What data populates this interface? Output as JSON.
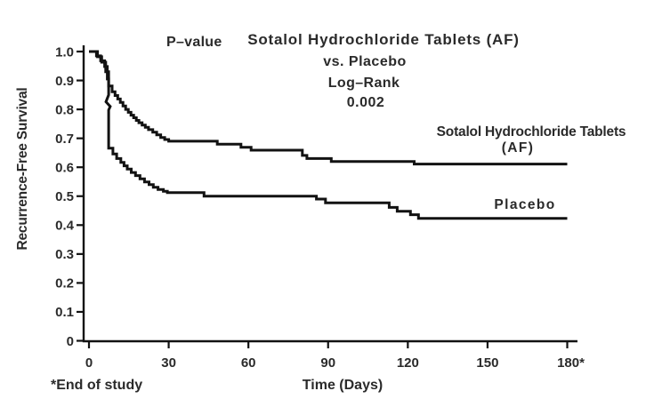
{
  "figure": {
    "background": "#ffffff",
    "text_color": "#2a2a2a",
    "line_color": "#121212"
  },
  "chart_data": {
    "type": "line",
    "subtype": "kaplan_meier_step_curves",
    "title_annotation": "P–value",
    "title_lines": [
      "Sotalol Hydrochloride Tablets (AF)",
      "vs. Placebo",
      "Log–Rank",
      "0.002"
    ],
    "comparison": "Sotalol Hydrochloride Tablets (AF) vs. Placebo",
    "test": "Log–Rank",
    "p_value": "0.002",
    "xlabel": "Time (Days)",
    "ylabel": "Recurrence-Free Survival",
    "footnote": "*End of study",
    "xlim": [
      0,
      180
    ],
    "ylim": [
      0,
      1.0
    ],
    "x_ticks": [
      0,
      30,
      60,
      90,
      120,
      150,
      180
    ],
    "x_tick_labels": [
      "0",
      "30",
      "60",
      "90",
      "120",
      "150",
      "180*"
    ],
    "y_ticks": [
      0,
      0.1,
      0.2,
      0.3,
      0.4,
      0.5,
      0.6,
      0.7,
      0.8,
      0.9,
      1.0
    ],
    "y_tick_labels": [
      "0",
      "0.1",
      "0.2",
      "0.3",
      "0.4",
      "0.5",
      "0.6",
      "0.7",
      "0.8",
      "0.9",
      "1.0"
    ],
    "grid": false,
    "legend_position": "labels-on-chart",
    "series": [
      {
        "name": "Sotalol Hydrochloride Tablets (AF)",
        "label_lines": [
          "Sotalol Hydrochloride Tablets",
          "(AF)"
        ],
        "final_value": 0.61,
        "points": [
          [
            0,
            1.0
          ],
          [
            3.2,
            1.0
          ],
          [
            3.2,
            0.982
          ],
          [
            4.8,
            0.982
          ],
          [
            4.8,
            0.963
          ],
          [
            6.3,
            0.963
          ],
          [
            6.3,
            0.93
          ],
          [
            6.9,
            0.93
          ],
          [
            6.9,
            0.905
          ],
          [
            7.4,
            0.905
          ],
          [
            7.4,
            0.881
          ],
          [
            8.7,
            0.881
          ],
          [
            8.7,
            0.861
          ],
          [
            9.8,
            0.861
          ],
          [
            9.8,
            0.848
          ],
          [
            10.8,
            0.848
          ],
          [
            10.8,
            0.836
          ],
          [
            11.8,
            0.836
          ],
          [
            11.8,
            0.824
          ],
          [
            12.8,
            0.824
          ],
          [
            12.8,
            0.812
          ],
          [
            13.8,
            0.812
          ],
          [
            13.8,
            0.8
          ],
          [
            14.8,
            0.8
          ],
          [
            14.8,
            0.79
          ],
          [
            15.8,
            0.79
          ],
          [
            15.8,
            0.78
          ],
          [
            16.8,
            0.78
          ],
          [
            16.8,
            0.771
          ],
          [
            17.8,
            0.771
          ],
          [
            17.8,
            0.762
          ],
          [
            18.8,
            0.762
          ],
          [
            18.8,
            0.754
          ],
          [
            20.0,
            0.754
          ],
          [
            20.0,
            0.746
          ],
          [
            21.2,
            0.746
          ],
          [
            21.2,
            0.738
          ],
          [
            22.4,
            0.738
          ],
          [
            22.4,
            0.73
          ],
          [
            24.0,
            0.73
          ],
          [
            24.0,
            0.721
          ],
          [
            25.5,
            0.721
          ],
          [
            25.5,
            0.712
          ],
          [
            27.0,
            0.712
          ],
          [
            27.0,
            0.703
          ],
          [
            28.5,
            0.703
          ],
          [
            28.5,
            0.696
          ],
          [
            30.0,
            0.696
          ],
          [
            30.0,
            0.69
          ],
          [
            48.3,
            0.69
          ],
          [
            48.3,
            0.68
          ],
          [
            57.2,
            0.68
          ],
          [
            57.2,
            0.669
          ],
          [
            61.0,
            0.669
          ],
          [
            61.0,
            0.659
          ],
          [
            80.3,
            0.659
          ],
          [
            80.3,
            0.641
          ],
          [
            82.0,
            0.641
          ],
          [
            82.0,
            0.63
          ],
          [
            91.2,
            0.63
          ],
          [
            91.2,
            0.62
          ],
          [
            122.4,
            0.62
          ],
          [
            122.4,
            0.611
          ],
          [
            180,
            0.611
          ]
        ]
      },
      {
        "name": "Placebo",
        "label_lines": [
          "Placebo"
        ],
        "final_value": 0.42,
        "points": [
          [
            0,
            1.0
          ],
          [
            2.8,
            1.0
          ],
          [
            2.8,
            0.985
          ],
          [
            4.4,
            0.985
          ],
          [
            4.4,
            0.968
          ],
          [
            5.9,
            0.968
          ],
          [
            5.9,
            0.948
          ],
          [
            6.9,
            0.948
          ],
          [
            6.9,
            0.93
          ],
          [
            7.4,
            0.93
          ],
          [
            7.4,
            0.85
          ],
          [
            6.4,
            0.826
          ],
          [
            8.0,
            0.81
          ],
          [
            7.4,
            0.798
          ],
          [
            7.4,
            0.666
          ],
          [
            9.0,
            0.666
          ],
          [
            9.0,
            0.646
          ],
          [
            10.4,
            0.646
          ],
          [
            10.4,
            0.63
          ],
          [
            12.0,
            0.63
          ],
          [
            12.0,
            0.617
          ],
          [
            13.2,
            0.617
          ],
          [
            13.2,
            0.605
          ],
          [
            14.4,
            0.605
          ],
          [
            14.4,
            0.594
          ],
          [
            15.9,
            0.594
          ],
          [
            15.9,
            0.582
          ],
          [
            17.5,
            0.582
          ],
          [
            17.5,
            0.571
          ],
          [
            19.2,
            0.571
          ],
          [
            19.2,
            0.56
          ],
          [
            20.9,
            0.56
          ],
          [
            20.9,
            0.549
          ],
          [
            22.6,
            0.549
          ],
          [
            22.6,
            0.54
          ],
          [
            24.2,
            0.54
          ],
          [
            24.2,
            0.531
          ],
          [
            26.0,
            0.531
          ],
          [
            26.0,
            0.523
          ],
          [
            28.0,
            0.523
          ],
          [
            28.0,
            0.517
          ],
          [
            29.5,
            0.517
          ],
          [
            29.5,
            0.512
          ],
          [
            43.3,
            0.512
          ],
          [
            43.3,
            0.5
          ],
          [
            85.6,
            0.5
          ],
          [
            85.6,
            0.49
          ],
          [
            89.0,
            0.49
          ],
          [
            89.0,
            0.477
          ],
          [
            113.0,
            0.477
          ],
          [
            113.0,
            0.461
          ],
          [
            116.0,
            0.461
          ],
          [
            116.0,
            0.448
          ],
          [
            121.0,
            0.448
          ],
          [
            121.0,
            0.436
          ],
          [
            124.0,
            0.436
          ],
          [
            124.0,
            0.423
          ],
          [
            180,
            0.423
          ]
        ]
      }
    ]
  }
}
